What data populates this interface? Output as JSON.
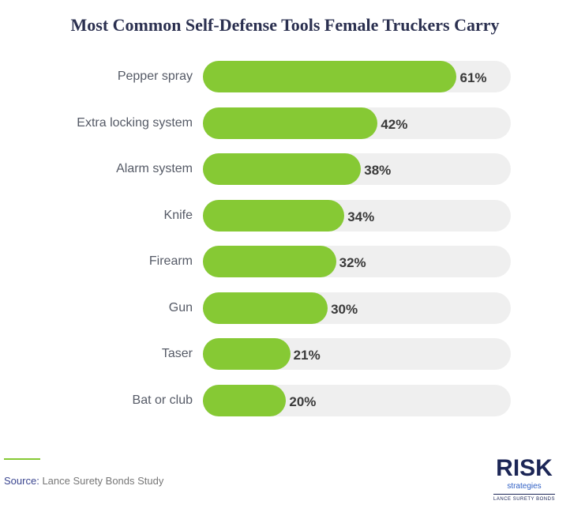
{
  "chart_data": {
    "type": "bar",
    "orientation": "horizontal",
    "title": "Most Common Self-Defense Tools Female Truckers Carry",
    "categories": [
      "Pepper spray",
      "Extra locking system",
      "Alarm system",
      "Knife",
      "Firearm",
      "Gun",
      "Taser",
      "Bat or club"
    ],
    "values": [
      61,
      42,
      38,
      34,
      32,
      30,
      21,
      20
    ],
    "value_labels": [
      "61%",
      "42%",
      "38%",
      "34%",
      "32%",
      "30%",
      "21%",
      "20%"
    ],
    "unit": "%",
    "xlim": [
      0,
      74
    ],
    "bar_color": "#86c934",
    "track_color": "#efefef",
    "grid": false
  },
  "source": {
    "label": "Source:",
    "text": "Lance Surety Bonds Study"
  },
  "logo": {
    "brand": "RISK",
    "sub": "strategies",
    "tagline": "LANCE SURETY BONDS"
  }
}
